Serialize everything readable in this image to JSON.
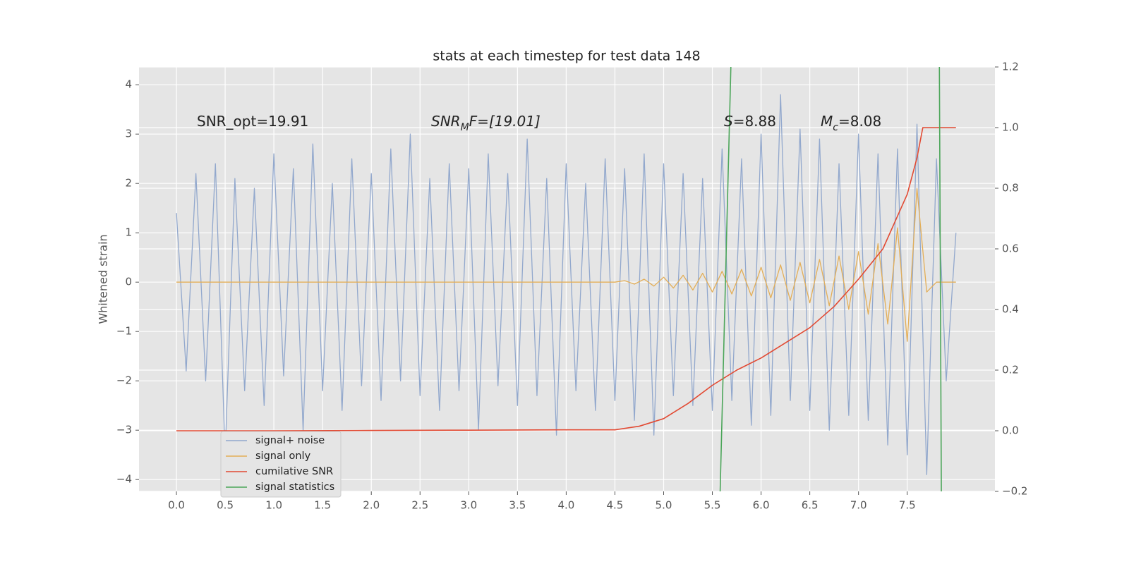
{
  "chart_data": {
    "type": "line",
    "title": "stats at each timestep for test data 148",
    "y_label": "Whitened strain",
    "annotations": [
      {
        "text": "SNR_opt=19.91"
      },
      {
        "italic": "SNR",
        "sub": "M",
        "text": "F=[19.01]"
      },
      {
        "italic": "S",
        "text": "=8.88"
      },
      {
        "italic": "M",
        "sub": "c",
        "text": "=8.08"
      }
    ],
    "x": [
      0,
      0.1,
      0.2,
      0.3,
      0.4,
      0.5,
      0.6,
      0.7,
      0.8,
      0.9,
      1,
      1.1,
      1.2,
      1.3,
      1.4,
      1.5,
      1.6,
      1.7,
      1.8,
      1.9,
      2,
      2.1,
      2.2,
      2.3,
      2.4,
      2.5,
      2.6,
      2.7,
      2.8,
      2.9,
      3,
      3.1,
      3.2,
      3.3,
      3.4,
      3.5,
      3.6,
      3.7,
      3.8,
      3.9,
      4,
      4.1,
      4.2,
      4.3,
      4.4,
      4.5,
      4.6,
      4.7,
      4.8,
      4.9,
      5,
      5.1,
      5.2,
      5.3,
      5.4,
      5.5,
      5.6,
      5.7,
      5.8,
      5.9,
      6,
      6.1,
      6.2,
      6.3,
      6.4,
      6.5,
      6.6,
      6.7,
      6.8,
      6.9,
      7,
      7.1,
      7.2,
      7.3,
      7.4,
      7.5,
      7.6,
      7.7,
      7.8,
      7.9,
      8
    ],
    "series": [
      {
        "name": "signal+ noise",
        "color": "#92a8cd",
        "values": [
          1.4,
          -1.8,
          2.2,
          -2.0,
          2.4,
          -3.5,
          2.1,
          -2.2,
          1.9,
          -2.5,
          2.6,
          -1.9,
          2.3,
          -3.0,
          2.8,
          -2.2,
          2.0,
          -2.6,
          2.5,
          -2.1,
          2.2,
          -2.4,
          2.7,
          -2.0,
          3.0,
          -2.3,
          2.1,
          -2.6,
          2.4,
          -2.2,
          2.3,
          -3.0,
          2.6,
          -2.1,
          2.2,
          -2.5,
          2.9,
          -2.3,
          2.1,
          -3.1,
          2.4,
          -2.2,
          2.0,
          -2.6,
          2.5,
          -2.4,
          2.3,
          -2.8,
          2.6,
          -3.1,
          2.4,
          -2.3,
          2.2,
          -2.5,
          2.1,
          -2.6,
          2.7,
          -2.4,
          2.5,
          -2.9,
          3.0,
          -2.7,
          3.8,
          -2.4,
          3.1,
          -2.6,
          2.9,
          -3.0,
          2.4,
          -2.7,
          3.0,
          -2.8,
          2.6,
          -3.3,
          2.7,
          -3.5,
          3.2,
          -3.9,
          2.5,
          -2.0,
          1.0
        ]
      },
      {
        "name": "signal only",
        "color": "#e3ae57",
        "values": [
          0,
          0,
          0,
          0,
          0,
          0,
          0,
          0,
          0,
          0,
          0,
          0,
          0,
          0,
          0,
          0,
          0,
          0,
          0,
          0,
          0,
          0,
          0,
          0,
          0,
          0,
          0,
          0,
          0,
          0,
          0,
          0,
          0,
          0,
          0,
          0,
          0,
          0,
          0,
          0,
          0,
          0,
          0,
          0,
          0,
          0,
          0.03,
          -0.04,
          0.06,
          -0.08,
          0.1,
          -0.12,
          0.14,
          -0.16,
          0.18,
          -0.2,
          0.22,
          -0.24,
          0.26,
          -0.28,
          0.3,
          -0.32,
          0.35,
          -0.37,
          0.4,
          -0.42,
          0.46,
          -0.48,
          0.53,
          -0.55,
          0.62,
          -0.65,
          0.78,
          -0.85,
          1.1,
          -1.2,
          1.9,
          -0.2,
          0,
          0,
          0
        ]
      },
      {
        "name": "cumilative SNR",
        "color": "#e24a33",
        "axis": "y2",
        "x": [
          0,
          1,
          2,
          3,
          4,
          4.5,
          4.75,
          5,
          5.25,
          5.5,
          5.75,
          6,
          6.25,
          6.5,
          6.75,
          7,
          7.25,
          7.5,
          7.6,
          7.66,
          7.68,
          8
        ],
        "values": [
          0,
          0,
          0.001,
          0.002,
          0.003,
          0.003,
          0.015,
          0.04,
          0.09,
          0.15,
          0.2,
          0.24,
          0.29,
          0.34,
          0.41,
          0.5,
          0.6,
          0.78,
          0.9,
          1.0,
          1.0,
          1.0
        ]
      },
      {
        "name": "signal statistics",
        "color": "#4ca65a",
        "axis": "y2",
        "x": [
          5.58,
          5.69,
          null,
          7.85,
          7.83
        ],
        "values": [
          -0.2,
          1.2,
          null,
          -0.2,
          1.2
        ]
      }
    ],
    "xlim": [
      -0.384,
      8.4
    ],
    "ylim": [
      -4.24,
      4.36
    ],
    "y2lim": [
      -0.2,
      1.2
    ],
    "xticks": [
      {
        "value": 0,
        "label": "0.0"
      },
      0.5,
      {
        "value": 1,
        "label": "1.0"
      },
      1.5,
      {
        "value": 2,
        "label": "2.0"
      },
      2.5,
      {
        "value": 3,
        "label": "3.0"
      },
      3.5,
      {
        "value": 4,
        "label": "4.0"
      },
      4.5,
      {
        "value": 5,
        "label": "5.0"
      },
      5.5,
      {
        "value": 6,
        "label": "6.0"
      },
      6.5,
      {
        "value": 7,
        "label": "7.0"
      },
      7.5
    ],
    "yticks": [
      {
        "value": -4,
        "label": "−4"
      },
      {
        "value": -3,
        "label": "−3"
      },
      {
        "value": -2,
        "label": "−2"
      },
      {
        "value": -1,
        "label": "−1"
      },
      0,
      1,
      2,
      3,
      4
    ],
    "y2ticks": [
      {
        "value": -0.2,
        "label": "−0.2"
      },
      {
        "value": 0,
        "label": "0.0"
      },
      0.2,
      0.4,
      0.6,
      0.8,
      {
        "value": 1,
        "label": "1.0"
      },
      1.2
    ],
    "grid": true,
    "legend": "lower left"
  }
}
